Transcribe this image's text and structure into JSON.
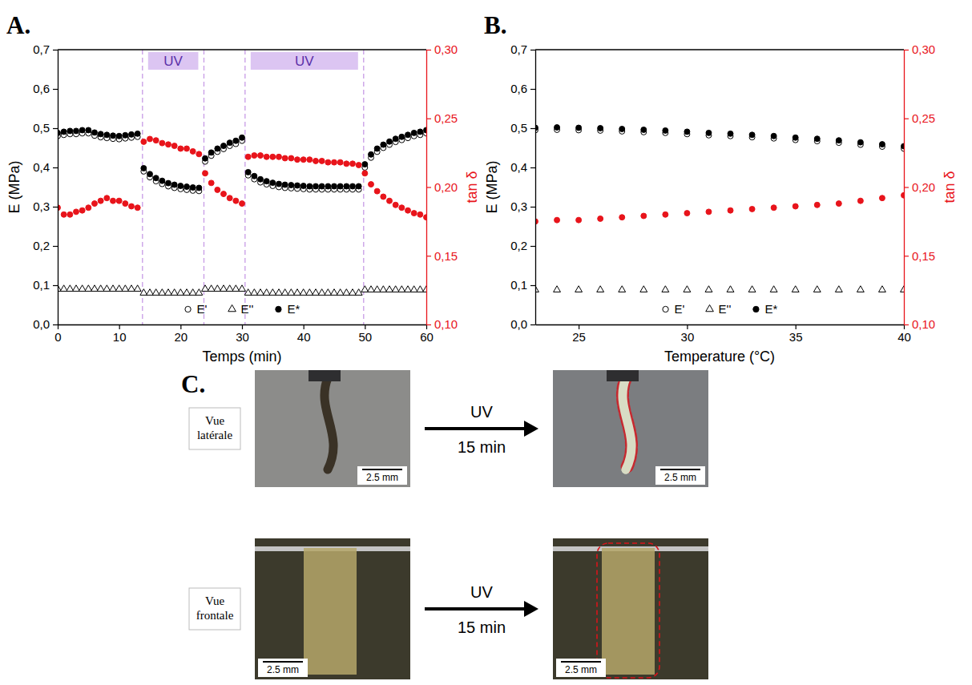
{
  "chart_data": [
    {
      "type": "scatter",
      "panel": "A.",
      "xlabel": "Temps (min)",
      "ylabel": "E (MPa)",
      "y2label": "tan δ",
      "x": [
        0,
        1,
        2,
        3,
        4,
        5,
        6,
        7,
        8,
        9,
        10,
        11,
        12,
        13,
        14,
        15,
        16,
        17,
        18,
        19,
        20,
        21,
        22,
        23,
        24,
        25,
        26,
        27,
        28,
        29,
        30,
        31,
        32,
        33,
        34,
        35,
        36,
        37,
        38,
        39,
        40,
        41,
        42,
        43,
        44,
        45,
        46,
        47,
        48,
        49,
        50,
        51,
        52,
        53,
        54,
        55,
        56,
        57,
        58,
        59,
        60
      ],
      "xlim": [
        0,
        60
      ],
      "xticks": [
        0,
        10,
        20,
        30,
        40,
        50,
        60
      ],
      "ylim": [
        0,
        0.7
      ],
      "yticks": [
        {
          "value": 0,
          "label": "0,0"
        },
        {
          "value": 0.1,
          "label": "0,1"
        },
        {
          "value": 0.2,
          "label": "0,2"
        },
        {
          "value": 0.3,
          "label": "0,3"
        },
        {
          "value": 0.4,
          "label": "0,4"
        },
        {
          "value": 0.5,
          "label": "0,5"
        },
        {
          "value": 0.6,
          "label": "0,6"
        },
        {
          "value": 0.7,
          "label": "0,7"
        }
      ],
      "y2lim": [
        0.1,
        0.3
      ],
      "y2ticks": [
        {
          "value": 0.1,
          "label": "0,10"
        },
        {
          "value": 0.15,
          "label": "0,15"
        },
        {
          "value": 0.2,
          "label": "0,20"
        },
        {
          "value": 0.25,
          "label": "0,25"
        },
        {
          "value": 0.3,
          "label": "0,30"
        }
      ],
      "legend": "bottom",
      "annotations": [
        {
          "text": "UV",
          "x_start": 13.8,
          "x_end": 23.8
        },
        {
          "text": "UV",
          "x_start": 30.5,
          "x_end": 49.8
        }
      ],
      "series": [
        {
          "name": "E'",
          "color": "#000000",
          "marker": "circle-open",
          "values": [
            0.48,
            0.483,
            0.485,
            0.485,
            0.487,
            0.487,
            0.481,
            0.477,
            0.475,
            0.473,
            0.472,
            0.474,
            0.476,
            0.478,
            0.39,
            0.375,
            0.365,
            0.358,
            0.352,
            0.348,
            0.345,
            0.343,
            0.341,
            0.34,
            0.415,
            0.43,
            0.44,
            0.447,
            0.455,
            0.46,
            0.468,
            0.38,
            0.37,
            0.362,
            0.357,
            0.353,
            0.35,
            0.348,
            0.347,
            0.346,
            0.345,
            0.344,
            0.344,
            0.344,
            0.344,
            0.344,
            0.344,
            0.344,
            0.344,
            0.344,
            0.4,
            0.425,
            0.44,
            0.45,
            0.458,
            0.465,
            0.47,
            0.475,
            0.48,
            0.483,
            0.487
          ]
        },
        {
          "name": "E''",
          "color": "#000000",
          "marker": "triangle-open",
          "values": [
            0.09,
            0.09,
            0.09,
            0.09,
            0.09,
            0.09,
            0.09,
            0.09,
            0.09,
            0.09,
            0.09,
            0.09,
            0.09,
            0.09,
            0.08,
            0.08,
            0.08,
            0.08,
            0.08,
            0.08,
            0.08,
            0.08,
            0.08,
            0.08,
            0.09,
            0.09,
            0.09,
            0.09,
            0.09,
            0.09,
            0.09,
            0.08,
            0.08,
            0.08,
            0.08,
            0.08,
            0.08,
            0.08,
            0.08,
            0.08,
            0.08,
            0.08,
            0.08,
            0.08,
            0.08,
            0.08,
            0.08,
            0.08,
            0.08,
            0.08,
            0.088,
            0.088,
            0.088,
            0.088,
            0.088,
            0.088,
            0.088,
            0.088,
            0.088,
            0.088,
            0.088
          ]
        },
        {
          "name": "E*",
          "color": "#000000",
          "marker": "circle",
          "values": [
            0.488,
            0.491,
            0.493,
            0.493,
            0.495,
            0.495,
            0.489,
            0.485,
            0.483,
            0.481,
            0.48,
            0.482,
            0.484,
            0.486,
            0.398,
            0.383,
            0.373,
            0.366,
            0.36,
            0.356,
            0.353,
            0.351,
            0.349,
            0.348,
            0.423,
            0.438,
            0.448,
            0.455,
            0.463,
            0.468,
            0.476,
            0.388,
            0.378,
            0.37,
            0.365,
            0.361,
            0.358,
            0.356,
            0.355,
            0.354,
            0.353,
            0.352,
            0.352,
            0.352,
            0.352,
            0.352,
            0.352,
            0.352,
            0.352,
            0.352,
            0.408,
            0.433,
            0.448,
            0.458,
            0.466,
            0.473,
            0.478,
            0.483,
            0.488,
            0.491,
            0.495
          ]
        },
        {
          "color": "#e8141b",
          "marker": "circle",
          "axis": "y2",
          "values": [
            0.185,
            0.18,
            0.18,
            0.182,
            0.183,
            0.185,
            0.188,
            0.19,
            0.192,
            0.19,
            0.19,
            0.188,
            0.186,
            0.185,
            0.233,
            0.235,
            0.234,
            0.232,
            0.231,
            0.23,
            0.228,
            0.228,
            0.226,
            0.224,
            0.21,
            0.203,
            0.198,
            0.195,
            0.192,
            0.19,
            0.188,
            0.222,
            0.223,
            0.223,
            0.222,
            0.222,
            0.222,
            0.221,
            0.221,
            0.22,
            0.22,
            0.22,
            0.219,
            0.219,
            0.218,
            0.218,
            0.218,
            0.217,
            0.217,
            0.216,
            0.21,
            0.202,
            0.197,
            0.193,
            0.19,
            0.187,
            0.185,
            0.183,
            0.181,
            0.18,
            0.178
          ]
        }
      ]
    },
    {
      "type": "scatter",
      "panel": "B.",
      "xlabel": "Temperature (°C)",
      "ylabel": "E (MPa)",
      "y2label": "tan δ",
      "x": [
        23,
        24,
        25,
        26,
        27,
        28,
        29,
        30,
        31,
        32,
        33,
        34,
        35,
        36,
        37,
        38,
        39,
        40
      ],
      "xlim": [
        23,
        40
      ],
      "xticks": [
        25,
        30,
        35,
        40
      ],
      "ylim": [
        0,
        0.7
      ],
      "yticks": [
        {
          "value": 0,
          "label": "0,0"
        },
        {
          "value": 0.1,
          "label": "0,1"
        },
        {
          "value": 0.2,
          "label": "0,2"
        },
        {
          "value": 0.3,
          "label": "0,3"
        },
        {
          "value": 0.4,
          "label": "0,4"
        },
        {
          "value": 0.5,
          "label": "0,5"
        },
        {
          "value": 0.6,
          "label": "0,6"
        },
        {
          "value": 0.7,
          "label": "0,7"
        }
      ],
      "y2lim": [
        0.1,
        0.3
      ],
      "y2ticks": [
        {
          "value": 0.1,
          "label": "0,10"
        },
        {
          "value": 0.15,
          "label": "0,15"
        },
        {
          "value": 0.2,
          "label": "0,20"
        },
        {
          "value": 0.25,
          "label": "0,25"
        },
        {
          "value": 0.3,
          "label": "0,30"
        }
      ],
      "legend": "bottom",
      "series": [
        {
          "name": "E'",
          "color": "#000000",
          "marker": "circle-open",
          "values": [
            0.495,
            0.496,
            0.495,
            0.494,
            0.492,
            0.49,
            0.488,
            0.485,
            0.482,
            0.48,
            0.477,
            0.474,
            0.47,
            0.467,
            0.463,
            0.458,
            0.453,
            0.448
          ]
        },
        {
          "name": "E''",
          "color": "#000000",
          "marker": "triangle-open",
          "values": [
            0.088,
            0.088,
            0.088,
            0.088,
            0.088,
            0.088,
            0.088,
            0.088,
            0.088,
            0.088,
            0.088,
            0.088,
            0.088,
            0.088,
            0.088,
            0.088,
            0.088,
            0.088
          ]
        },
        {
          "name": "E*",
          "color": "#000000",
          "marker": "circle",
          "values": [
            0.501,
            0.502,
            0.501,
            0.5,
            0.498,
            0.496,
            0.494,
            0.491,
            0.488,
            0.486,
            0.483,
            0.48,
            0.476,
            0.473,
            0.469,
            0.464,
            0.459,
            0.454
          ]
        },
        {
          "color": "#e8141b",
          "marker": "circle",
          "axis": "y2",
          "values": [
            0.175,
            0.176,
            0.176,
            0.177,
            0.178,
            0.179,
            0.18,
            0.181,
            0.182,
            0.183,
            0.184,
            0.185,
            0.186,
            0.187,
            0.188,
            0.19,
            0.192,
            0.194
          ]
        }
      ]
    }
  ],
  "panel_c": {
    "label": "C.",
    "rows": [
      {
        "view": "Vue latérale",
        "arrow_label": "UV",
        "arrow_time": "15 min",
        "scale_bars": [
          "2.5 mm",
          "2.5 mm"
        ]
      },
      {
        "view": "Vue frontale",
        "arrow_label": "UV",
        "arrow_time": "15 min",
        "scale_bars": [
          "2.5 mm",
          "2.5 mm"
        ]
      }
    ]
  }
}
